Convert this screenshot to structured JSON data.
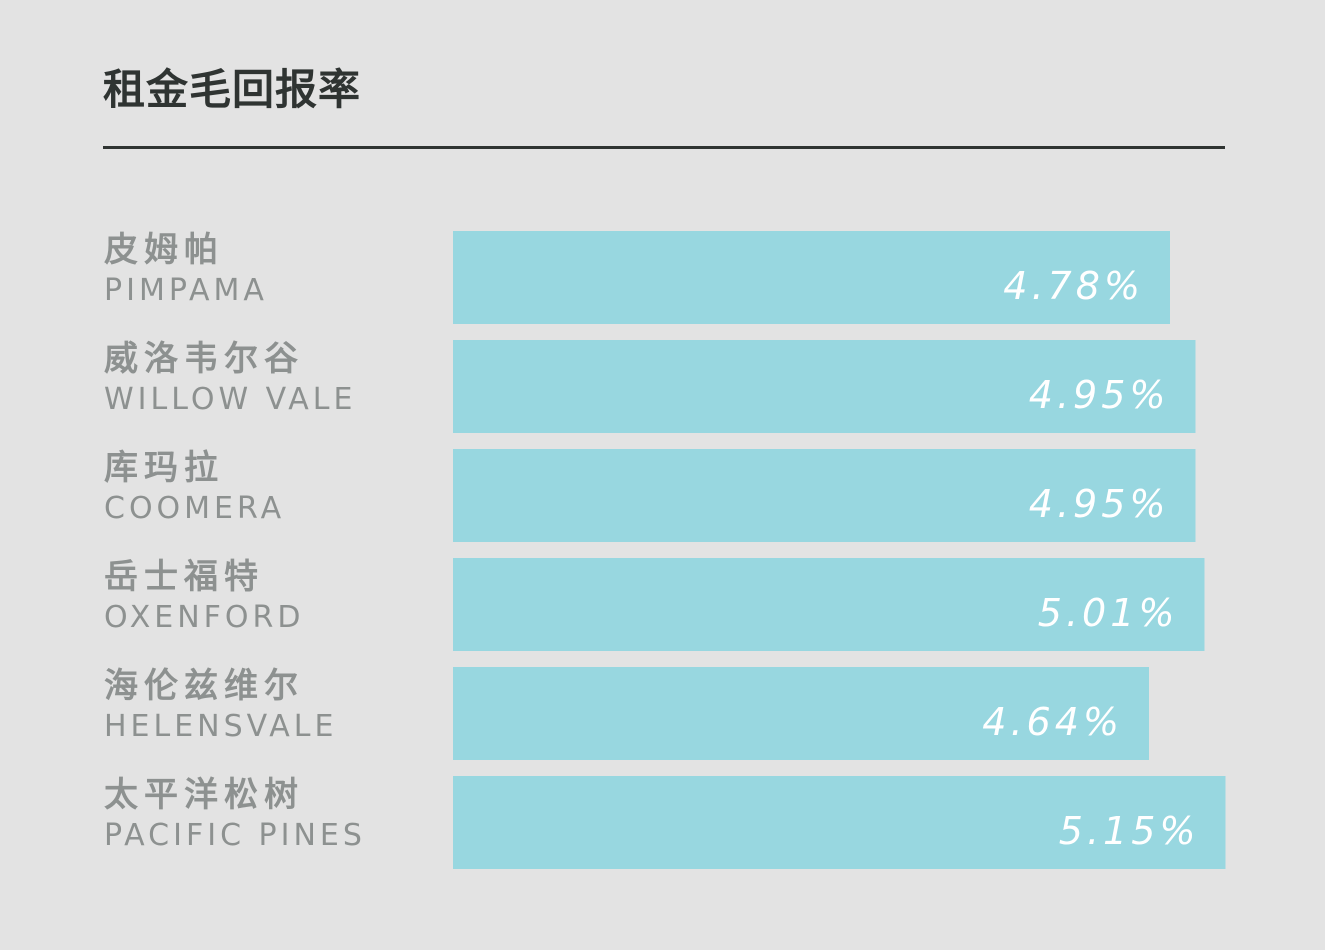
{
  "title": "租金毛回报率",
  "colors": {
    "background": "#e3e3e3",
    "bar": "#98d7e0",
    "title": "#2f3432",
    "label": "#8d9190",
    "value_text": "#ffffff"
  },
  "chart_data": {
    "type": "bar",
    "orientation": "horizontal",
    "title": "租金毛回报率",
    "categories": [
      {
        "zh": "皮姆帕",
        "en": "PIMPAMA"
      },
      {
        "zh": "威洛韦尔谷",
        "en": "WILLOW VALE"
      },
      {
        "zh": "库玛拉",
        "en": "COOMERA"
      },
      {
        "zh": "岳士福特",
        "en": "OXENFORD"
      },
      {
        "zh": "海伦兹维尔",
        "en": "HELENSVALE"
      },
      {
        "zh": "太平洋松树",
        "en": "PACIFIC PINES"
      }
    ],
    "values": [
      4.78,
      4.95,
      4.95,
      5.01,
      4.64,
      5.15
    ],
    "value_labels": [
      "4.78%",
      "4.95%",
      "4.95%",
      "5.01%",
      "4.64%",
      "5.15%"
    ],
    "unit": "%",
    "grid": false,
    "legend": "none"
  }
}
